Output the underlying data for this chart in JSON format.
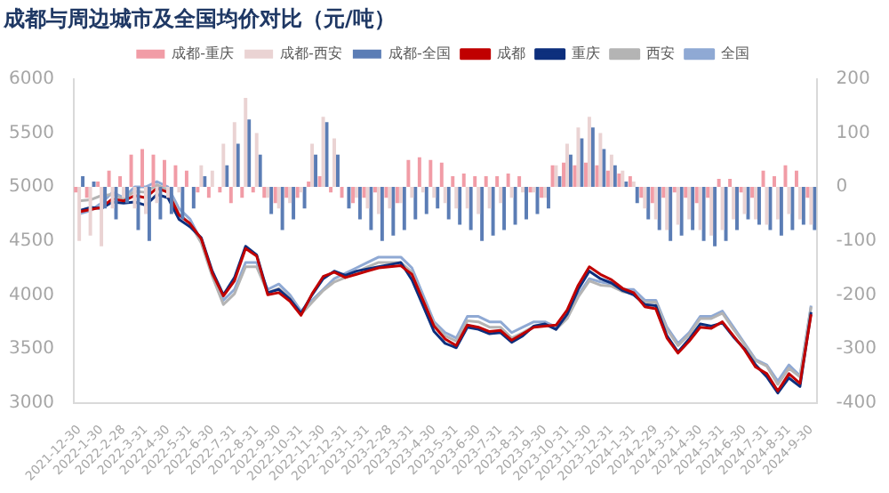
{
  "chart_data": {
    "type": "line",
    "title": "成都与周边城市及全国均价对比（元/吨）",
    "categories": [
      "2021-12-30",
      null,
      "2022-1-30",
      null,
      "2022-2-28",
      null,
      "2022-3-31",
      null,
      "2022-4-30",
      null,
      "2022-5-31",
      null,
      "2022-6-30",
      null,
      "2022-7-31",
      null,
      "2022-8-31",
      null,
      "2022-9-30",
      null,
      "2022-10-31",
      null,
      "2022-11-30",
      null,
      "2022-12-31",
      null,
      "2023-1-31",
      null,
      "2023-2-28",
      null,
      "2023-3-31",
      null,
      "2023-4-30",
      null,
      "2023-5-31",
      null,
      "2023-6-30",
      null,
      "2023-7-31",
      null,
      "2023-8-31",
      null,
      "2023-9-30",
      null,
      "2023-10-31",
      null,
      "2023-11-30",
      null,
      "2023-12-31",
      null,
      "2024-1-31",
      null,
      "2024-2-29",
      null,
      "2024-3-31",
      null,
      "2024-4-30",
      null,
      "2024-5-31",
      null,
      "2024-6-30",
      null,
      "2024-7-31",
      null,
      "2024-8-31",
      null,
      "2024-9-30"
    ],
    "series": [
      {
        "name": "成都-重庆",
        "type": "bar",
        "axis": "y2",
        "color": "#f19ca6",
        "values": [
          -10,
          -20,
          10,
          30,
          20,
          60,
          70,
          60,
          50,
          40,
          30,
          -10,
          -20,
          -10,
          -30,
          -20,
          -10,
          -20,
          -30,
          -20,
          -20,
          10,
          20,
          -10,
          -20,
          -30,
          -20,
          -10,
          -20,
          -30,
          50,
          55,
          50,
          45,
          20,
          25,
          20,
          20,
          20,
          25,
          20,
          -10,
          -20,
          40,
          45,
          40,
          45,
          40,
          30,
          25,
          20,
          -20,
          -30,
          -20,
          -10,
          -20,
          -30,
          -20,
          15,
          15,
          -10,
          -20,
          30,
          20,
          40,
          30,
          -20
        ]
      },
      {
        "name": "成都-西安",
        "type": "bar",
        "axis": "y2",
        "color": "#ead3d3",
        "values": [
          -100,
          -90,
          -110,
          -40,
          -20,
          -40,
          -50,
          -30,
          -20,
          -10,
          0,
          40,
          30,
          80,
          120,
          165,
          100,
          -20,
          -40,
          -30,
          -10,
          80,
          130,
          90,
          0,
          -20,
          -40,
          -50,
          -40,
          -30,
          -20,
          -10,
          -20,
          -30,
          -40,
          -40,
          -50,
          -40,
          -30,
          -20,
          -10,
          -10,
          -20,
          40,
          80,
          110,
          130,
          100,
          60,
          30,
          10,
          -40,
          -60,
          -80,
          -70,
          -60,
          -80,
          -90,
          -80,
          -60,
          -50,
          -60,
          -70,
          -60,
          -50,
          -60,
          -70
        ]
      },
      {
        "name": "成都-全国",
        "type": "bar",
        "axis": "y2",
        "color": "#5b7db5",
        "values": [
          20,
          10,
          -40,
          -60,
          -30,
          -80,
          -100,
          -60,
          -50,
          -60,
          -40,
          20,
          0,
          40,
          80,
          125,
          60,
          -50,
          -80,
          -60,
          -40,
          60,
          120,
          60,
          -40,
          -60,
          -80,
          -100,
          -90,
          -80,
          -60,
          -50,
          -40,
          -60,
          -70,
          -80,
          -100,
          -90,
          -80,
          -70,
          -60,
          -50,
          -40,
          20,
          60,
          90,
          110,
          70,
          40,
          10,
          -30,
          -60,
          -80,
          -100,
          -90,
          -80,
          -100,
          -110,
          -100,
          -80,
          -60,
          -70,
          -80,
          -90,
          -80,
          -70,
          -80
        ]
      },
      {
        "name": "成都",
        "color": "#c00000",
        "values": [
          4770,
          4790,
          4810,
          4890,
          4870,
          4920,
          4900,
          4990,
          4950,
          4740,
          4660,
          4520,
          4200,
          3990,
          4130,
          4430,
          4360,
          4000,
          4020,
          3940,
          3810,
          4010,
          4170,
          4210,
          4160,
          4190,
          4220,
          4250,
          4260,
          4270,
          4190,
          3950,
          3710,
          3590,
          3530,
          3720,
          3700,
          3660,
          3670,
          3580,
          3640,
          3700,
          3710,
          3720,
          3860,
          4090,
          4260,
          4190,
          4140,
          4060,
          4020,
          3890,
          3870,
          3600,
          3460,
          3570,
          3700,
          3690,
          3750,
          3620,
          3490,
          3330,
          3270,
          3110,
          3270,
          3180,
          3820
        ]
      },
      {
        "name": "重庆",
        "color": "#0d2f7d",
        "values": [
          4780,
          4810,
          4800,
          4860,
          4850,
          4860,
          4830,
          4930,
          4900,
          4700,
          4630,
          4530,
          4220,
          4000,
          4160,
          4450,
          4370,
          4020,
          4050,
          3960,
          3830,
          4000,
          4150,
          4220,
          4180,
          4220,
          4240,
          4260,
          4280,
          4300,
          4140,
          3900,
          3660,
          3550,
          3510,
          3700,
          3680,
          3640,
          3650,
          3560,
          3620,
          3710,
          3730,
          3680,
          3820,
          4050,
          4220,
          4150,
          4110,
          4040,
          4000,
          3910,
          3900,
          3620,
          3470,
          3590,
          3730,
          3710,
          3740,
          3610,
          3500,
          3350,
          3240,
          3090,
          3230,
          3150,
          3840
        ]
      },
      {
        "name": "西安",
        "color": "#b4b4b4",
        "values": [
          4870,
          4880,
          4920,
          4930,
          4890,
          4960,
          4950,
          5020,
          4970,
          4750,
          4660,
          4480,
          4170,
          3910,
          4010,
          4260,
          4260,
          4020,
          4060,
          3970,
          3820,
          3930,
          4040,
          4120,
          4160,
          4210,
          4260,
          4300,
          4300,
          4300,
          4210,
          3960,
          3730,
          3620,
          3570,
          3760,
          3750,
          3700,
          3700,
          3600,
          3650,
          3710,
          3730,
          3680,
          3780,
          3980,
          4130,
          4090,
          4080,
          4030,
          4010,
          3930,
          3930,
          3680,
          3530,
          3630,
          3780,
          3780,
          3830,
          3680,
          3540,
          3390,
          3340,
          3170,
          3320,
          3240,
          3890
        ]
      },
      {
        "name": "全国",
        "color": "#8fa9d4",
        "values": [
          4750,
          4780,
          4850,
          4950,
          4900,
          5000,
          5000,
          5050,
          5000,
          4800,
          4700,
          4500,
          4200,
          3950,
          4050,
          4300,
          4300,
          4050,
          4100,
          4000,
          3850,
          3950,
          4050,
          4150,
          4200,
          4250,
          4300,
          4350,
          4350,
          4350,
          4250,
          4000,
          3750,
          3650,
          3600,
          3800,
          3800,
          3750,
          3750,
          3650,
          3700,
          3750,
          3750,
          3700,
          3800,
          4000,
          4150,
          4120,
          4100,
          4050,
          4050,
          3950,
          3950,
          3700,
          3550,
          3650,
          3800,
          3800,
          3850,
          3700,
          3550,
          3400,
          3350,
          3200,
          3350,
          3250,
          3900
        ]
      }
    ],
    "ylim": [
      3000,
      6000
    ],
    "yticks": [
      3000,
      3500,
      4000,
      4500,
      5000,
      5500,
      6000
    ],
    "y2lim": [
      -400,
      200
    ],
    "y2ticks": [
      -400,
      -300,
      -200,
      -100,
      0,
      100,
      200
    ],
    "legend": "top",
    "marker": "none",
    "line_style": "solid"
  }
}
